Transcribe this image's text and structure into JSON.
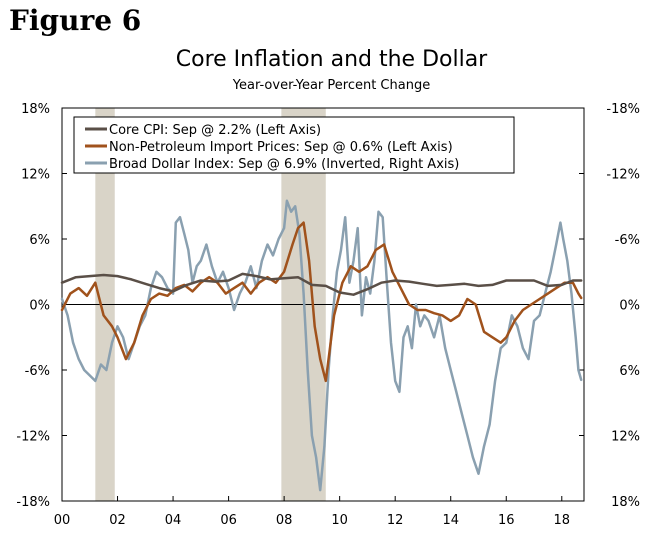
{
  "figure_label": "Figure 6",
  "colors": {
    "core_cpi": "#5a4f47",
    "import_prices": "#a0521c",
    "dollar": "#8aa0b0",
    "recession": "#d9d4c8"
  },
  "chart_data": {
    "type": "line",
    "title": "Core Inflation and the Dollar",
    "subtitle": "Year-over-Year Percent Change",
    "xlabel": "",
    "ylabel_left": "",
    "ylabel_right": "",
    "xlim": [
      2000,
      2018.8
    ],
    "ylim": [
      -18,
      18
    ],
    "x_ticks": [
      {
        "value": 2000,
        "label": "00"
      },
      {
        "value": 2002,
        "label": "02"
      },
      {
        "value": 2004,
        "label": "04"
      },
      {
        "value": 2006,
        "label": "06"
      },
      {
        "value": 2008,
        "label": "08"
      },
      {
        "value": 2010,
        "label": "10"
      },
      {
        "value": 2012,
        "label": "12"
      },
      {
        "value": 2014,
        "label": "14"
      },
      {
        "value": 2016,
        "label": "16"
      },
      {
        "value": 2018,
        "label": "18"
      }
    ],
    "left_ticks": [
      {
        "value": 18,
        "label": "18%"
      },
      {
        "value": 12,
        "label": "12%"
      },
      {
        "value": 6,
        "label": "6%"
      },
      {
        "value": 0,
        "label": "0%"
      },
      {
        "value": -6,
        "label": "-6%"
      },
      {
        "value": -12,
        "label": "-12%"
      },
      {
        "value": -18,
        "label": "-18%"
      }
    ],
    "right_ticks": [
      {
        "value": 18,
        "label": "-18%"
      },
      {
        "value": 12,
        "label": "-12%"
      },
      {
        "value": 6,
        "label": "-6%"
      },
      {
        "value": 0,
        "label": "0%"
      },
      {
        "value": -6,
        "label": "6%"
      },
      {
        "value": -12,
        "label": "12%"
      },
      {
        "value": -18,
        "label": "18%"
      }
    ],
    "recessions": [
      [
        2001.2,
        2001.9
      ],
      [
        2007.9,
        2009.5
      ]
    ],
    "legend_position": "top-left",
    "series": [
      {
        "name": "Core CPI: Sep @ 2.2% (Left Axis)",
        "color_key": "core_cpi",
        "width": 2.5,
        "x": [
          2000.0,
          2000.5,
          2001.0,
          2001.5,
          2002.0,
          2002.5,
          2003.0,
          2003.5,
          2004.0,
          2004.5,
          2005.0,
          2005.5,
          2006.0,
          2006.5,
          2007.0,
          2007.5,
          2008.0,
          2008.5,
          2009.0,
          2009.5,
          2010.0,
          2010.5,
          2011.0,
          2011.5,
          2012.0,
          2012.5,
          2013.0,
          2013.5,
          2014.0,
          2014.5,
          2015.0,
          2015.5,
          2016.0,
          2016.5,
          2017.0,
          2017.5,
          2018.0,
          2018.4,
          2018.7
        ],
        "y": [
          2.0,
          2.5,
          2.6,
          2.7,
          2.6,
          2.3,
          1.9,
          1.5,
          1.2,
          1.8,
          2.2,
          2.1,
          2.2,
          2.8,
          2.6,
          2.3,
          2.4,
          2.5,
          1.8,
          1.7,
          1.1,
          0.9,
          1.4,
          2.0,
          2.2,
          2.1,
          1.9,
          1.7,
          1.8,
          1.9,
          1.7,
          1.8,
          2.2,
          2.2,
          2.2,
          1.7,
          1.8,
          2.2,
          2.2
        ]
      },
      {
        "name": "Non-Petroleum Import Prices: Sep @ 0.6% (Left Axis)",
        "color_key": "import_prices",
        "width": 2.5,
        "x": [
          2000.0,
          2000.3,
          2000.6,
          2000.9,
          2001.2,
          2001.5,
          2001.8,
          2002.0,
          2002.3,
          2002.6,
          2002.9,
          2003.2,
          2003.5,
          2003.8,
          2004.1,
          2004.4,
          2004.7,
          2005.0,
          2005.3,
          2005.6,
          2005.9,
          2006.2,
          2006.5,
          2006.8,
          2007.1,
          2007.4,
          2007.7,
          2008.0,
          2008.3,
          2008.5,
          2008.7,
          2008.9,
          2009.1,
          2009.3,
          2009.5,
          2009.8,
          2010.1,
          2010.4,
          2010.7,
          2011.0,
          2011.3,
          2011.6,
          2011.9,
          2012.2,
          2012.5,
          2012.8,
          2013.1,
          2013.4,
          2013.7,
          2014.0,
          2014.3,
          2014.6,
          2014.9,
          2015.2,
          2015.5,
          2015.8,
          2016.0,
          2016.3,
          2016.6,
          2016.9,
          2017.2,
          2017.5,
          2017.8,
          2018.1,
          2018.4,
          2018.6,
          2018.7
        ],
        "y": [
          -0.5,
          1.0,
          1.5,
          0.8,
          2.0,
          -1.0,
          -2.0,
          -3.0,
          -5.0,
          -3.5,
          -1.0,
          0.5,
          1.0,
          0.8,
          1.5,
          1.8,
          1.2,
          2.0,
          2.5,
          2.0,
          1.0,
          1.5,
          2.0,
          1.0,
          2.0,
          2.5,
          2.0,
          3.0,
          5.5,
          7.0,
          7.5,
          4.0,
          -2.0,
          -5.0,
          -7.0,
          -1.0,
          2.0,
          3.5,
          3.0,
          3.5,
          5.0,
          5.5,
          3.0,
          1.5,
          0.0,
          -0.5,
          -0.5,
          -0.8,
          -1.0,
          -1.5,
          -1.0,
          0.5,
          0.0,
          -2.5,
          -3.0,
          -3.5,
          -3.0,
          -1.5,
          -0.5,
          0.0,
          0.5,
          1.0,
          1.5,
          2.0,
          2.0,
          1.0,
          0.6
        ]
      },
      {
        "name": "Broad Dollar Index: Sep @ 6.9% (Inverted, Right Axis)",
        "color_key": "dollar",
        "width": 2.5,
        "x": [
          2000.0,
          2000.2,
          2000.4,
          2000.6,
          2000.8,
          2001.0,
          2001.2,
          2001.4,
          2001.6,
          2001.8,
          2002.0,
          2002.2,
          2002.4,
          2002.6,
          2002.8,
          2003.0,
          2003.2,
          2003.4,
          2003.6,
          2003.8,
          2004.0,
          2004.1,
          2004.25,
          2004.4,
          2004.55,
          2004.7,
          2004.85,
          2005.0,
          2005.2,
          2005.4,
          2005.6,
          2005.8,
          2006.0,
          2006.2,
          2006.4,
          2006.6,
          2006.8,
          2007.0,
          2007.2,
          2007.4,
          2007.6,
          2007.8,
          2008.0,
          2008.1,
          2008.25,
          2008.4,
          2008.55,
          2008.7,
          2008.85,
          2009.0,
          2009.15,
          2009.3,
          2009.45,
          2009.6,
          2009.75,
          2009.9,
          2010.05,
          2010.2,
          2010.35,
          2010.5,
          2010.65,
          2010.8,
          2010.95,
          2011.1,
          2011.25,
          2011.4,
          2011.55,
          2011.7,
          2011.85,
          2012.0,
          2012.15,
          2012.3,
          2012.45,
          2012.6,
          2012.75,
          2012.9,
          2013.05,
          2013.2,
          2013.4,
          2013.6,
          2013.8,
          2014.0,
          2014.2,
          2014.4,
          2014.6,
          2014.8,
          2015.0,
          2015.2,
          2015.4,
          2015.6,
          2015.8,
          2016.0,
          2016.2,
          2016.4,
          2016.6,
          2016.8,
          2017.0,
          2017.2,
          2017.4,
          2017.6,
          2017.8,
          2017.95,
          2018.05,
          2018.2,
          2018.35,
          2018.5,
          2018.6,
          2018.7
        ],
        "y": [
          0.5,
          -1.0,
          -3.5,
          -5.0,
          -6.0,
          -6.5,
          -7.0,
          -5.5,
          -6.0,
          -3.5,
          -2.0,
          -3.0,
          -5.0,
          -3.5,
          -2.0,
          -1.0,
          1.5,
          3.0,
          2.5,
          1.5,
          1.0,
          7.5,
          8.0,
          6.5,
          5.0,
          2.0,
          3.5,
          4.0,
          5.5,
          3.5,
          2.0,
          3.0,
          1.5,
          -0.5,
          1.0,
          2.0,
          3.5,
          1.5,
          4.0,
          5.5,
          4.5,
          6.0,
          7.0,
          9.5,
          8.5,
          9.0,
          6.5,
          1.0,
          -6.0,
          -12.0,
          -14.0,
          -17.0,
          -13.0,
          -6.0,
          -1.0,
          3.0,
          5.0,
          8.0,
          2.0,
          4.0,
          7.0,
          -1.0,
          2.5,
          1.0,
          4.0,
          8.5,
          8.0,
          2.0,
          -3.5,
          -7.0,
          -8.0,
          -3.0,
          -2.0,
          -4.0,
          0.0,
          -2.0,
          -1.0,
          -1.5,
          -3.0,
          -1.0,
          -4.0,
          -6.0,
          -8.0,
          -10.0,
          -12.0,
          -14.0,
          -15.5,
          -13.0,
          -11.0,
          -7.0,
          -4.0,
          -3.5,
          -1.0,
          -2.0,
          -4.0,
          -5.0,
          -1.5,
          -1.0,
          1.0,
          3.0,
          5.5,
          7.5,
          6.0,
          4.0,
          1.0,
          -3.0,
          -6.0,
          -6.9
        ]
      }
    ]
  }
}
